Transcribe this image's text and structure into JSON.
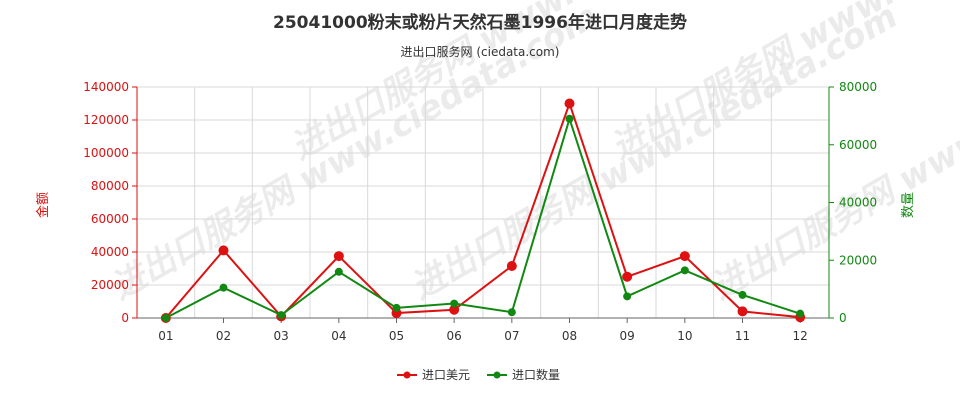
{
  "chart_data": {
    "type": "line",
    "title": "25041000粉末或粉片天然石墨1996年进口月度走势",
    "subtitle": "进出口服务网 (ciedata.com)",
    "watermark": "进出口服务网 www.ciedata.com",
    "categories": [
      "01",
      "02",
      "03",
      "04",
      "05",
      "06",
      "07",
      "08",
      "09",
      "10",
      "11",
      "12"
    ],
    "y_left": {
      "label": "金额",
      "ylim": [
        0,
        140000
      ],
      "ticks": [
        "0",
        "20000",
        "40000",
        "60000",
        "80000",
        "100000",
        "120000",
        "140000"
      ],
      "color": "#dd1111"
    },
    "y_right": {
      "label": "数量",
      "ylim": [
        0,
        80000
      ],
      "ticks": [
        "0",
        "20000",
        "40000",
        "60000",
        "80000"
      ],
      "color": "#118811"
    },
    "series": [
      {
        "name": "进口美元",
        "axis": "left",
        "color": "#dd1111",
        "values": [
          0,
          41000,
          1000,
          37500,
          3000,
          5000,
          31500,
          130000,
          25000,
          37500,
          4000,
          500
        ]
      },
      {
        "name": "进口数量",
        "axis": "right",
        "color": "#118811",
        "values": [
          0,
          10500,
          1000,
          16000,
          3500,
          5000,
          2000,
          69000,
          7500,
          16500,
          8000,
          1500
        ]
      }
    ],
    "grid": true,
    "legend_position": "bottom-center"
  }
}
